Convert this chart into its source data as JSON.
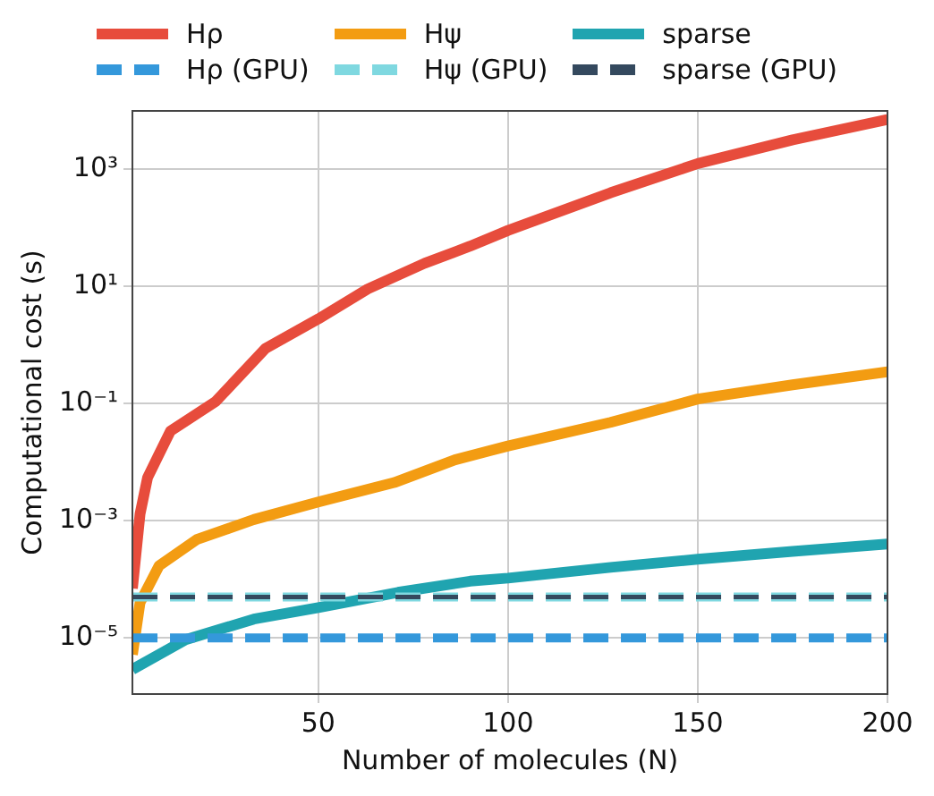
{
  "chart_data": {
    "type": "line",
    "xlabel": "Number of molecules (N)",
    "ylabel": "Computational cost (s)",
    "log": "y",
    "grid": true,
    "legend": "top",
    "line_style": "solid",
    "marker": "none",
    "xlim": [
      1,
      200
    ],
    "xticks": [
      50,
      100,
      150,
      200
    ],
    "ylim": [
      1.1e-06,
      10000
    ],
    "yticks": [
      {
        "value": 1e-05,
        "label": "10⁻⁵"
      },
      {
        "value": 0.001,
        "label": "10⁻³"
      },
      {
        "value": 0.1,
        "label": "10⁻¹"
      },
      {
        "value": 10,
        "label": "10¹"
      },
      {
        "value": 1000,
        "label": "10³"
      }
    ],
    "series": [
      {
        "name": "Hρ",
        "color": "#e74c3c",
        "x": [
          1,
          3,
          5,
          11,
          23,
          36,
          50,
          63,
          78,
          90,
          100,
          127,
          150,
          175,
          200
        ],
        "values": [
          7e-05,
          0.0013,
          0.0055,
          0.034,
          0.11,
          0.87,
          2.8,
          9.1,
          25,
          49,
          91,
          400,
          1260,
          3200,
          7100
        ]
      },
      {
        "name": "Hψ",
        "color": "#f39c12",
        "x": [
          1,
          3,
          8,
          18,
          33,
          50,
          70,
          86,
          100,
          127,
          150,
          175,
          200
        ],
        "values": [
          5.2e-06,
          4e-05,
          0.00017,
          0.00048,
          0.00105,
          0.0021,
          0.0045,
          0.011,
          0.019,
          0.048,
          0.12,
          0.21,
          0.35
        ]
      },
      {
        "name": "sparse",
        "color": "#20a4b0",
        "x": [
          1,
          15,
          33,
          50,
          71,
          90,
          100,
          127,
          150,
          175,
          200
        ],
        "values": [
          2.9e-06,
          9.3e-06,
          2.1e-05,
          3.3e-05,
          6e-05,
          9.3e-05,
          0.000105,
          0.00016,
          0.00022,
          0.0003,
          0.0004
        ]
      },
      {
        "name": "Hρ (GPU)",
        "color": "#3498db",
        "line_style": "dashed",
        "x": [
          1,
          200
        ],
        "values": [
          1e-05,
          1e-05
        ]
      },
      {
        "name": "Hψ (GPU)",
        "color": "#7fd8e0",
        "line_style": "dashed",
        "x": [
          1,
          200
        ],
        "values": [
          5e-05,
          5e-05
        ]
      },
      {
        "name": "sparse (GPU)",
        "color": "#34495e",
        "line_style": "dashed",
        "x": [
          1,
          200
        ],
        "values": [
          5e-05,
          5e-05
        ]
      }
    ]
  }
}
